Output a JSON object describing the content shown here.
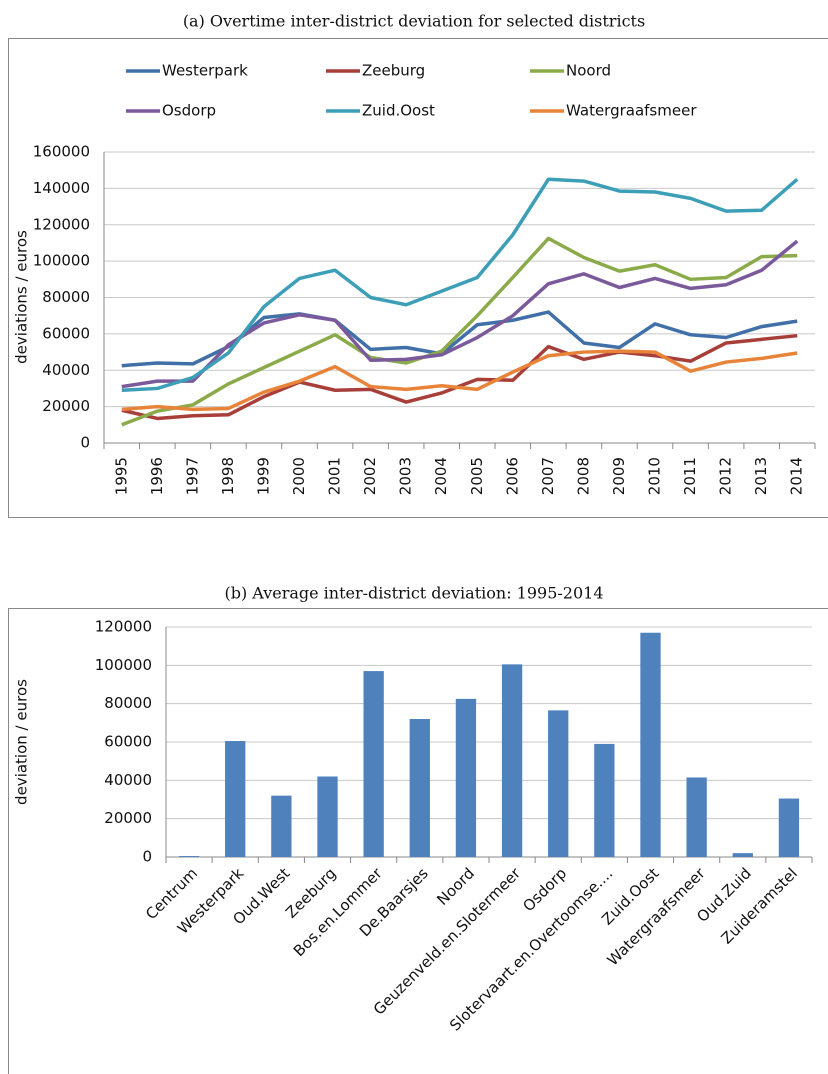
{
  "chart_data": [
    {
      "type": "line",
      "title": "(a) Overtime inter-district deviation for selected districts",
      "y_label": "deviations / euros",
      "categories": [
        "1995",
        "1996",
        "1997",
        "1998",
        "1999",
        "2000",
        "2001",
        "2002",
        "2003",
        "2004",
        "2005",
        "2006",
        "2007",
        "2008",
        "2009",
        "2010",
        "2011",
        "2012",
        "2013",
        "2014"
      ],
      "ylim": [
        0,
        160000
      ],
      "yticks": [
        0,
        20000,
        40000,
        60000,
        80000,
        100000,
        120000,
        140000,
        160000
      ],
      "grid": true,
      "legend": "top",
      "series": [
        {
          "name": "Westerpark",
          "color": "#4170a8",
          "values": [
            42500,
            44000,
            43500,
            53000,
            69000,
            71000,
            67500,
            51500,
            52500,
            49000,
            65000,
            67500,
            72000,
            55000,
            52500,
            65500,
            59500,
            58000,
            64000,
            67000
          ]
        },
        {
          "name": "Zeeburg",
          "color": "#a83e3a",
          "values": [
            18000,
            13500,
            15000,
            15500,
            25500,
            33500,
            29000,
            29500,
            22500,
            27500,
            35000,
            34500,
            53000,
            46000,
            50000,
            48000,
            45000,
            55000,
            57000,
            59000
          ]
        },
        {
          "name": "Noord",
          "color": "#8bab4a",
          "values": [
            10000,
            17500,
            21000,
            32500,
            41500,
            50500,
            59500,
            47000,
            44000,
            50500,
            70000,
            91000,
            112500,
            102000,
            94500,
            98000,
            90000,
            91000,
            102500,
            103000
          ]
        },
        {
          "name": "Osdorp",
          "color": "#7b5a9c",
          "values": [
            31000,
            34000,
            34000,
            54000,
            66000,
            70500,
            67500,
            45500,
            46000,
            48500,
            58000,
            70000,
            87500,
            93000,
            85500,
            90500,
            85000,
            87000,
            95000,
            111000
          ]
        },
        {
          "name": "Zuid.Oost",
          "color": "#3d9eb8",
          "values": [
            29000,
            30000,
            36000,
            49500,
            75000,
            90500,
            95000,
            80000,
            76000,
            83500,
            91000,
            114500,
            145000,
            144000,
            138500,
            138000,
            134500,
            127500,
            128000,
            145000
          ]
        },
        {
          "name": "Watergraafsmeer",
          "color": "#e8843a",
          "values": [
            18500,
            20000,
            18500,
            19000,
            28000,
            34000,
            42000,
            31000,
            29500,
            31500,
            29500,
            39000,
            48000,
            50000,
            50500,
            50000,
            39500,
            44500,
            46500,
            49500
          ]
        }
      ]
    },
    {
      "type": "bar",
      "title": "(b) Average inter-district deviation: 1995-2014",
      "y_label": "deviation / euros",
      "categories": [
        "Centrum",
        "Westerpark",
        "Oud.West",
        "Zeeburg",
        "Bos.en.Lommer",
        "De.Baarsjes",
        "Noord",
        "Geuzenveld.en.Slotermeer",
        "Osdorp",
        "Slotervaart.en.Overtoomse....",
        "Zuid.Oost",
        "Watergraafsmeer",
        "Oud.Zuid",
        "Zuideramstel"
      ],
      "values": [
        500,
        60500,
        32000,
        42000,
        97000,
        72000,
        82500,
        100500,
        76500,
        59000,
        117000,
        41500,
        2000,
        30500
      ],
      "color": "#4f81bd",
      "ylim": [
        0,
        120000
      ],
      "yticks": [
        0,
        20000,
        40000,
        60000,
        80000,
        100000,
        120000
      ],
      "grid": true
    }
  ]
}
